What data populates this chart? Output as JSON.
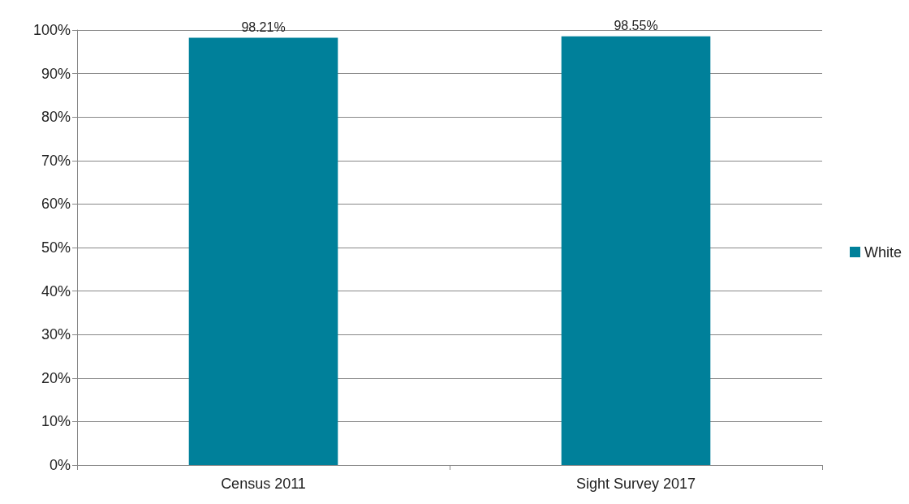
{
  "chart_data": {
    "type": "bar",
    "categories": [
      "Census 2011",
      "Sight Survey 2017"
    ],
    "series": [
      {
        "name": "White",
        "color": "#00809a",
        "values": [
          98.21,
          98.55
        ],
        "value_labels": [
          "98.21%",
          "98.55%"
        ]
      }
    ],
    "ylim": [
      0,
      100
    ],
    "yticks": [
      {
        "value": 0,
        "label": "0%"
      },
      {
        "value": 10,
        "label": "10%"
      },
      {
        "value": 20,
        "label": "20%"
      },
      {
        "value": 30,
        "label": "30%"
      },
      {
        "value": 40,
        "label": "40%"
      },
      {
        "value": 50,
        "label": "50%"
      },
      {
        "value": 60,
        "label": "60%"
      },
      {
        "value": 70,
        "label": "70%"
      },
      {
        "value": 80,
        "label": "80%"
      },
      {
        "value": 90,
        "label": "90%"
      },
      {
        "value": 100,
        "label": "100%"
      }
    ],
    "grid": "y",
    "legend": "right"
  }
}
